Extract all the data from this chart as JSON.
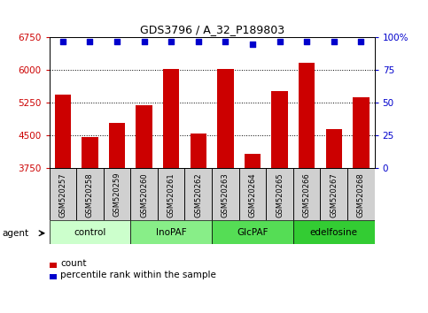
{
  "title": "GDS3796 / A_32_P189803",
  "samples": [
    "GSM520257",
    "GSM520258",
    "GSM520259",
    "GSM520260",
    "GSM520261",
    "GSM520262",
    "GSM520263",
    "GSM520264",
    "GSM520265",
    "GSM520266",
    "GSM520267",
    "GSM520268"
  ],
  "bar_values": [
    5430,
    4470,
    4780,
    5190,
    6020,
    4550,
    6030,
    4080,
    5530,
    6180,
    4640,
    5380
  ],
  "percentile_values": [
    97,
    97,
    97,
    97,
    97,
    97,
    97,
    95,
    97,
    97,
    97,
    97
  ],
  "ylim_left": [
    3750,
    6750
  ],
  "ylim_right": [
    0,
    100
  ],
  "yticks_left": [
    3750,
    4500,
    5250,
    6000,
    6750
  ],
  "yticks_right": [
    0,
    25,
    50,
    75,
    100
  ],
  "bar_color": "#cc0000",
  "dot_color": "#0000cc",
  "groups": [
    {
      "label": "control",
      "start": 0,
      "end": 3,
      "color": "#ccffcc"
    },
    {
      "label": "InoPAF",
      "start": 3,
      "end": 6,
      "color": "#88ee88"
    },
    {
      "label": "GlcPAF",
      "start": 6,
      "end": 9,
      "color": "#55dd55"
    },
    {
      "label": "edelfosine",
      "start": 9,
      "end": 12,
      "color": "#33cc33"
    }
  ],
  "sample_box_color": "#d0d0d0",
  "background_color": "#ffffff",
  "tick_label_color_left": "#cc0000",
  "tick_label_color_right": "#0000cc",
  "legend_count_label": "count",
  "legend_pct_label": "percentile rank within the sample",
  "agent_label": "agent"
}
